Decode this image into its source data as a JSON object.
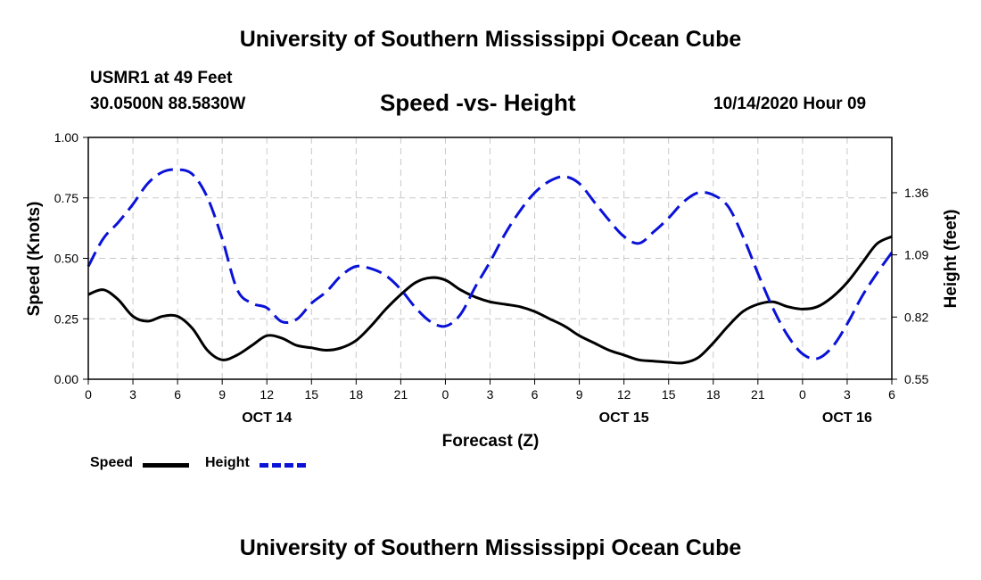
{
  "header": {
    "title": "University of Southern Mississippi Ocean Cube",
    "station": "USMR1 at 49 Feet",
    "coords": "30.0500N 88.5830W",
    "chart_title": "Speed -vs- Height",
    "datetime": "10/14/2020 Hour 09"
  },
  "footer": {
    "title": "University of Southern Mississippi Ocean Cube"
  },
  "legend": {
    "speed_label": "Speed",
    "height_label": "Height"
  },
  "colors": {
    "speed": "#000000",
    "height": "#0a12d8",
    "grid": "#c8c8c8"
  },
  "chart_data": {
    "type": "line",
    "title": "Speed -vs- Height",
    "xlabel": "Forecast (Z)",
    "ylabel": "Speed (Knots)",
    "y2label": "Height (feet)",
    "xlim": [
      0,
      54
    ],
    "ylim": [
      0,
      1
    ],
    "y2lim": [
      0.55,
      1.6
    ],
    "x_ticks": [
      0,
      3,
      6,
      9,
      12,
      15,
      18,
      21,
      24,
      27,
      30,
      33,
      36,
      39,
      42,
      45,
      48,
      51,
      54
    ],
    "x_tick_labels": [
      "0",
      "3",
      "6",
      "9",
      "12",
      "15",
      "18",
      "21",
      "0",
      "3",
      "6",
      "9",
      "12",
      "15",
      "18",
      "21",
      "0",
      "3",
      "6"
    ],
    "y_ticks": [
      0,
      0.25,
      0.5,
      0.75,
      1
    ],
    "y_tick_labels": [
      "0.00",
      "0.25",
      "0.50",
      "0.75",
      "1.00"
    ],
    "y2_ticks": [
      0.55,
      0.82,
      1.09,
      1.36
    ],
    "y2_tick_labels": [
      "0.55",
      "0.82",
      "1.09",
      "1.36"
    ],
    "day_labels": [
      {
        "x": 12,
        "text": "OCT 14"
      },
      {
        "x": 36,
        "text": "OCT 15"
      },
      {
        "x": 51,
        "text": "OCT 16"
      }
    ],
    "series": [
      {
        "name": "Speed",
        "axis": "left",
        "style": "solid",
        "x": [
          0,
          1,
          2,
          3,
          4,
          5,
          6,
          7,
          8,
          9,
          10,
          11,
          12,
          13,
          14,
          15,
          16,
          17,
          18,
          19,
          20,
          21,
          22,
          23,
          24,
          25,
          26,
          27,
          28,
          29,
          30,
          31,
          32,
          33,
          34,
          35,
          36,
          37,
          38,
          39,
          40,
          41,
          42,
          43,
          44,
          45,
          46,
          47,
          48,
          49,
          50,
          51,
          52,
          53,
          54
        ],
        "values": [
          0.35,
          0.37,
          0.33,
          0.26,
          0.24,
          0.26,
          0.26,
          0.21,
          0.12,
          0.08,
          0.1,
          0.14,
          0.18,
          0.17,
          0.14,
          0.13,
          0.12,
          0.13,
          0.16,
          0.22,
          0.29,
          0.35,
          0.4,
          0.42,
          0.41,
          0.37,
          0.34,
          0.32,
          0.31,
          0.3,
          0.28,
          0.25,
          0.22,
          0.18,
          0.15,
          0.12,
          0.1,
          0.08,
          0.075,
          0.07,
          0.068,
          0.09,
          0.15,
          0.22,
          0.28,
          0.31,
          0.32,
          0.3,
          0.29,
          0.3,
          0.34,
          0.4,
          0.48,
          0.56,
          0.59
        ]
      },
      {
        "name": "Height",
        "axis": "right",
        "style": "dashed",
        "x": [
          0,
          1,
          2,
          3,
          4,
          5,
          6,
          7,
          8,
          9,
          10,
          11,
          12,
          13,
          14,
          15,
          16,
          17,
          18,
          19,
          20,
          21,
          22,
          23,
          24,
          25,
          26,
          27,
          28,
          29,
          30,
          31,
          32,
          33,
          34,
          35,
          36,
          37,
          38,
          39,
          40,
          41,
          42,
          43,
          44,
          45,
          46,
          47,
          48,
          49,
          50,
          51,
          52,
          53,
          54
        ],
        "values": [
          1.04,
          1.16,
          1.23,
          1.31,
          1.4,
          1.45,
          1.46,
          1.44,
          1.34,
          1.16,
          0.94,
          0.88,
          0.86,
          0.8,
          0.81,
          0.88,
          0.93,
          1.0,
          1.04,
          1.03,
          1.0,
          0.94,
          0.86,
          0.8,
          0.78,
          0.83,
          0.95,
          1.06,
          1.18,
          1.28,
          1.36,
          1.41,
          1.43,
          1.4,
          1.32,
          1.24,
          1.17,
          1.14,
          1.19,
          1.25,
          1.32,
          1.36,
          1.35,
          1.3,
          1.17,
          1.01,
          0.86,
          0.74,
          0.66,
          0.64,
          0.69,
          0.79,
          0.91,
          1.01,
          1.1
        ]
      }
    ]
  }
}
